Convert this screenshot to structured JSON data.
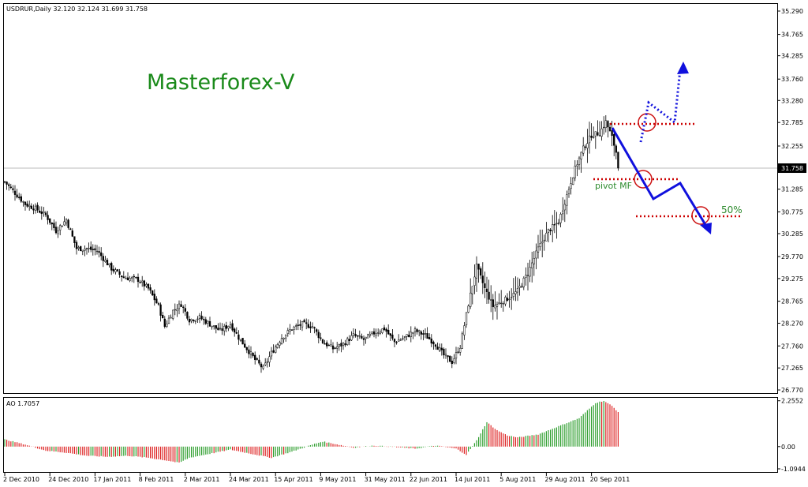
{
  "header": {
    "symbol_info": "USDRUR,Daily  32.120 32.124 31.699 31.758",
    "ao_info": "AO 1.7057"
  },
  "watermark": "Masterforex-V",
  "price_label": "31.758",
  "annotations": {
    "pivot_label": "pivot MF",
    "fib_label": "50%"
  },
  "colors": {
    "watermark": "#1a8a1a",
    "candles": "#000000",
    "ao_up": "#2e9e2e",
    "ao_down": "#dd2222",
    "projection": "#1010dd",
    "levels": "#cc0000"
  },
  "chart_data": [
    {
      "type": "candlestick",
      "title": "USDRUR,Daily",
      "y_ticks": [
        "35.290",
        "34.765",
        "34.285",
        "33.760",
        "33.280",
        "32.785",
        "32.255",
        "31.758",
        "31.285",
        "30.775",
        "30.285",
        "29.770",
        "29.275",
        "28.765",
        "28.270",
        "27.760",
        "27.265",
        "26.770"
      ],
      "x_ticks": [
        "2 Dec 2010",
        "24 Dec 2010",
        "17 Jan 2011",
        "8 Feb 2011",
        "2 Mar 2011",
        "24 Mar 2011",
        "15 Apr 2011",
        "9 May 2011",
        "31 May 2011",
        "22 Jun 2011",
        "14 Jul 2011",
        "5 Aug 2011",
        "29 Aug 2011",
        "20 Sep 2011"
      ],
      "ylim": [
        26.7,
        35.45
      ],
      "current_price": 31.758,
      "last_bar": {
        "open": 32.12,
        "high": 32.124,
        "low": 31.699,
        "close": 31.758
      },
      "close_path": [
        [
          0,
          31.45
        ],
        [
          10,
          30.95
        ],
        [
          15,
          30.85
        ],
        [
          20,
          30.7
        ],
        [
          25,
          30.35
        ],
        [
          30,
          30.6
        ],
        [
          35,
          29.95
        ],
        [
          40,
          29.95
        ],
        [
          45,
          29.9
        ],
        [
          52,
          29.5
        ],
        [
          58,
          29.3
        ],
        [
          65,
          29.25
        ],
        [
          70,
          29.05
        ],
        [
          75,
          28.65
        ],
        [
          78,
          28.2
        ],
        [
          82,
          28.55
        ],
        [
          86,
          28.7
        ],
        [
          90,
          28.35
        ],
        [
          95,
          28.4
        ],
        [
          100,
          28.25
        ],
        [
          105,
          28.1
        ],
        [
          110,
          28.25
        ],
        [
          114,
          27.95
        ],
        [
          118,
          27.7
        ],
        [
          122,
          27.45
        ],
        [
          126,
          27.25
        ],
        [
          130,
          27.6
        ],
        [
          135,
          27.95
        ],
        [
          140,
          28.15
        ],
        [
          145,
          28.25
        ],
        [
          150,
          28.2
        ],
        [
          155,
          27.85
        ],
        [
          160,
          27.7
        ],
        [
          165,
          27.8
        ],
        [
          170,
          28.0
        ],
        [
          175,
          27.9
        ],
        [
          180,
          28.05
        ],
        [
          185,
          28.15
        ],
        [
          190,
          27.85
        ],
        [
          195,
          27.95
        ],
        [
          200,
          28.1
        ],
        [
          205,
          28.0
        ],
        [
          210,
          27.8
        ],
        [
          214,
          27.55
        ],
        [
          218,
          27.4
        ],
        [
          222,
          27.75
        ],
        [
          226,
          28.7
        ],
        [
          230,
          29.55
        ],
        [
          234,
          29.05
        ],
        [
          238,
          28.65
        ],
        [
          242,
          28.75
        ],
        [
          246,
          28.85
        ],
        [
          250,
          29.0
        ],
        [
          255,
          29.4
        ],
        [
          260,
          29.95
        ],
        [
          265,
          30.35
        ],
        [
          270,
          30.55
        ],
        [
          274,
          31.15
        ],
        [
          278,
          31.75
        ],
        [
          282,
          32.2
        ],
        [
          286,
          32.5
        ],
        [
          290,
          32.55
        ],
        [
          293,
          32.8
        ],
        [
          296,
          32.45
        ],
        [
          298,
          32.12
        ],
        [
          299,
          31.758
        ]
      ]
    },
    {
      "type": "bar",
      "title": "AO 1.7057",
      "value": 1.7057,
      "y_ticks": [
        "2.2552",
        "0.00",
        "-1.0944"
      ],
      "ylim": [
        -1.25,
        2.4
      ],
      "values_path": [
        [
          0,
          0.35
        ],
        [
          10,
          0.1
        ],
        [
          20,
          -0.2
        ],
        [
          30,
          -0.3
        ],
        [
          40,
          -0.45
        ],
        [
          50,
          -0.5
        ],
        [
          60,
          -0.45
        ],
        [
          70,
          -0.55
        ],
        [
          80,
          -0.7
        ],
        [
          85,
          -0.8
        ],
        [
          90,
          -0.55
        ],
        [
          100,
          -0.35
        ],
        [
          110,
          -0.15
        ],
        [
          120,
          -0.35
        ],
        [
          130,
          -0.55
        ],
        [
          140,
          -0.25
        ],
        [
          150,
          0.1
        ],
        [
          155,
          0.25
        ],
        [
          160,
          0.15
        ],
        [
          170,
          -0.05
        ],
        [
          180,
          0.05
        ],
        [
          190,
          -0.02
        ],
        [
          200,
          -0.1
        ],
        [
          210,
          0.05
        ],
        [
          220,
          -0.1
        ],
        [
          225,
          -0.4
        ],
        [
          230,
          0.3
        ],
        [
          235,
          1.2
        ],
        [
          240,
          0.8
        ],
        [
          245,
          0.55
        ],
        [
          250,
          0.45
        ],
        [
          260,
          0.6
        ],
        [
          270,
          1.0
        ],
        [
          280,
          1.4
        ],
        [
          288,
          2.15
        ],
        [
          292,
          2.25
        ],
        [
          296,
          2.0
        ],
        [
          299,
          1.7057
        ]
      ]
    }
  ]
}
